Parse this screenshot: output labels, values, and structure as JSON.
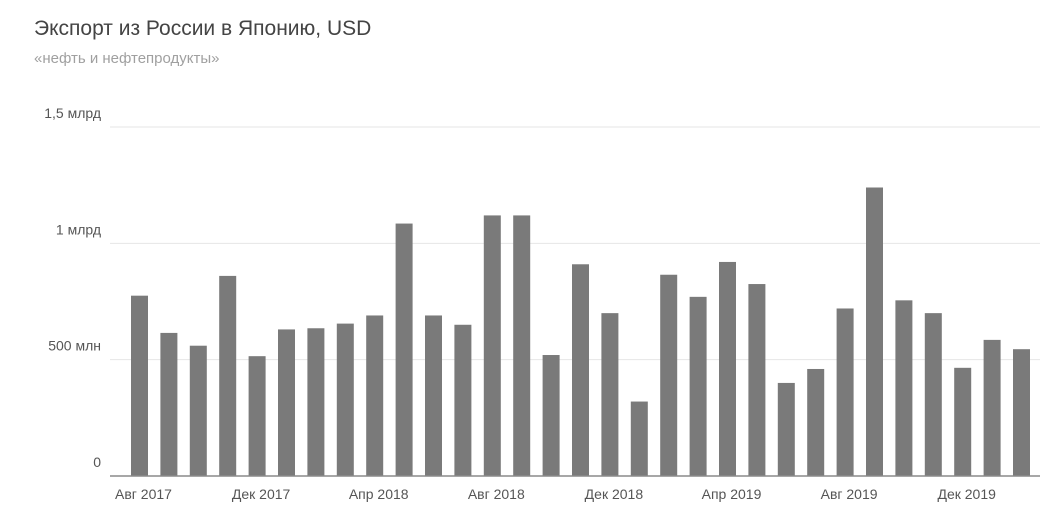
{
  "chart_data": {
    "type": "bar",
    "title": "Экспорт из России в Японию, USD",
    "subtitle": "«нефть и нефтепродукты»",
    "xlabel": "",
    "ylabel": "",
    "ylim": [
      0,
      1500000000
    ],
    "grid": true,
    "legend": "none",
    "bar_color": "#7a7a7a",
    "y_ticks": [
      {
        "value": 0,
        "label": "0"
      },
      {
        "value": 500000000,
        "label": "500 млн"
      },
      {
        "value": 1000000000,
        "label": "1 млрд"
      },
      {
        "value": 1500000000,
        "label": "1,5 млрд"
      }
    ],
    "x_tick_labels": [
      {
        "index": 0,
        "label": "Авг 2017"
      },
      {
        "index": 4,
        "label": "Дек 2017"
      },
      {
        "index": 8,
        "label": "Апр 2018"
      },
      {
        "index": 12,
        "label": "Авг 2018"
      },
      {
        "index": 16,
        "label": "Дек 2018"
      },
      {
        "index": 20,
        "label": "Апр 2019"
      },
      {
        "index": 24,
        "label": "Авг 2019"
      },
      {
        "index": 28,
        "label": "Дек 2019"
      }
    ],
    "categories": [
      "2017-08",
      "2017-09",
      "2017-10",
      "2017-11",
      "2017-12",
      "2018-01",
      "2018-02",
      "2018-03",
      "2018-04",
      "2018-05",
      "2018-06",
      "2018-07",
      "2018-08",
      "2018-09",
      "2018-10",
      "2018-11",
      "2018-12",
      "2019-01",
      "2019-02",
      "2019-03",
      "2019-04",
      "2019-05",
      "2019-06",
      "2019-07",
      "2019-08",
      "2019-09",
      "2019-10",
      "2019-11",
      "2019-12",
      "2020-01",
      "2020-02"
    ],
    "values": [
      775000000,
      615000000,
      560000000,
      860000000,
      515000000,
      630000000,
      635000000,
      655000000,
      690000000,
      1085000000,
      690000000,
      650000000,
      1120000000,
      1120000000,
      520000000,
      910000000,
      700000000,
      320000000,
      865000000,
      770000000,
      920000000,
      825000000,
      400000000,
      460000000,
      720000000,
      1240000000,
      755000000,
      700000000,
      465000000,
      585000000,
      545000000
    ]
  }
}
